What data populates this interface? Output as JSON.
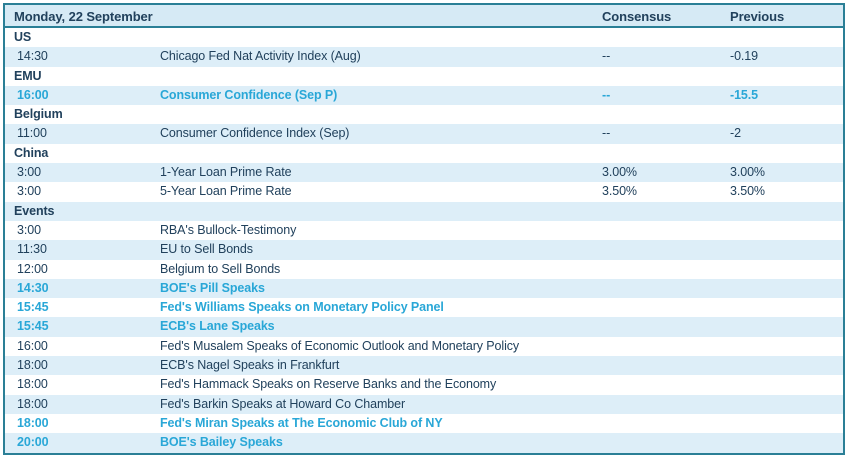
{
  "table": {
    "title": "Monday, 22 September",
    "columns": {
      "consensus": "Consensus",
      "previous": "Previous"
    },
    "colors": {
      "border": "#2a7f96",
      "header_bg": "#d6eaf5",
      "stripe_bg": "#ddeef8",
      "text_navy": "#21415c",
      "highlight_teal": "#29a7d7",
      "page_bg": "#ffffff"
    },
    "rows": [
      {
        "type": "section",
        "label": "US"
      },
      {
        "type": "event",
        "time": "14:30",
        "name": "Chicago Fed Nat Activity Index (Aug)",
        "consensus": "--",
        "previous": "-0.19",
        "highlight": false
      },
      {
        "type": "section",
        "label": "EMU"
      },
      {
        "type": "event",
        "time": "16:00",
        "name": "Consumer Confidence (Sep P)",
        "consensus": "--",
        "previous": "-15.5",
        "highlight": true
      },
      {
        "type": "section",
        "label": "Belgium"
      },
      {
        "type": "event",
        "time": "11:00",
        "name": "Consumer Confidence Index (Sep)",
        "consensus": "--",
        "previous": "-2",
        "highlight": false
      },
      {
        "type": "section",
        "label": "China"
      },
      {
        "type": "event",
        "time": "3:00",
        "name": "1-Year Loan Prime Rate",
        "consensus": "3.00%",
        "previous": "3.00%",
        "highlight": false
      },
      {
        "type": "event",
        "time": "3:00",
        "name": "5-Year Loan Prime Rate",
        "consensus": "3.50%",
        "previous": "3.50%",
        "highlight": false
      },
      {
        "type": "section",
        "label": "Events"
      },
      {
        "type": "event",
        "time": "3:00",
        "name": "RBA's Bullock-Testimony",
        "consensus": "",
        "previous": "",
        "highlight": false
      },
      {
        "type": "event",
        "time": "11:30",
        "name": "EU to Sell Bonds",
        "consensus": "",
        "previous": "",
        "highlight": false
      },
      {
        "type": "event",
        "time": "12:00",
        "name": "Belgium to Sell Bonds",
        "consensus": "",
        "previous": "",
        "highlight": false
      },
      {
        "type": "event",
        "time": "14:30",
        "name": "BOE's Pill Speaks",
        "consensus": "",
        "previous": "",
        "highlight": true
      },
      {
        "type": "event",
        "time": "15:45",
        "name": "Fed's Williams Speaks on Monetary Policy Panel",
        "consensus": "",
        "previous": "",
        "highlight": true
      },
      {
        "type": "event",
        "time": "15:45",
        "name": "ECB's Lane Speaks",
        "consensus": "",
        "previous": "",
        "highlight": true
      },
      {
        "type": "event",
        "time": "16:00",
        "name": "Fed's Musalem Speaks of Economic Outlook and Monetary Policy",
        "consensus": "",
        "previous": "",
        "highlight": false
      },
      {
        "type": "event",
        "time": "18:00",
        "name": "ECB's Nagel Speaks in Frankfurt",
        "consensus": "",
        "previous": "",
        "highlight": false
      },
      {
        "type": "event",
        "time": "18:00",
        "name": "Fed's Hammack Speaks on Reserve Banks and the Economy",
        "consensus": "",
        "previous": "",
        "highlight": false
      },
      {
        "type": "event",
        "time": "18:00",
        "name": "Fed's Barkin Speaks at Howard Co Chamber",
        "consensus": "",
        "previous": "",
        "highlight": false
      },
      {
        "type": "event",
        "time": "18:00",
        "name": "Fed's Miran Speaks at The Economic Club of NY",
        "consensus": "",
        "previous": "",
        "highlight": true
      },
      {
        "type": "event",
        "time": "20:00",
        "name": "BOE's Bailey Speaks",
        "consensus": "",
        "previous": "",
        "highlight": true
      }
    ]
  }
}
